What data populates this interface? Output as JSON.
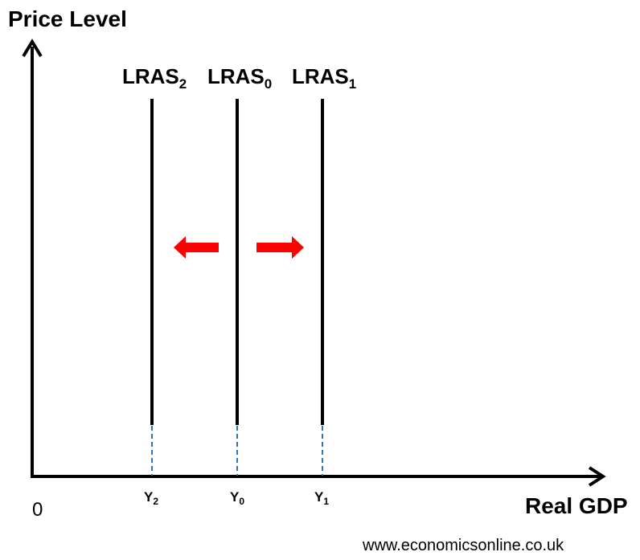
{
  "y_axis_label": "Price Level",
  "x_axis_label": "Real GDP",
  "origin_label": "0",
  "watermark": "www.economicsonline.co.uk",
  "curves": [
    {
      "name": "LRAS",
      "sub": "2",
      "x_label": "Y",
      "x_sub": "2"
    },
    {
      "name": "LRAS",
      "sub": "0",
      "x_label": "Y",
      "x_sub": "0"
    },
    {
      "name": "LRAS",
      "sub": "1",
      "x_label": "Y",
      "x_sub": "1"
    }
  ],
  "colors": {
    "axis": "#000000",
    "curve": "#000000",
    "dashed_guide": "#2e75b6",
    "shift_arrow": "#ff0000"
  },
  "shift_arrows": [
    "left-arrow",
    "right-arrow"
  ]
}
